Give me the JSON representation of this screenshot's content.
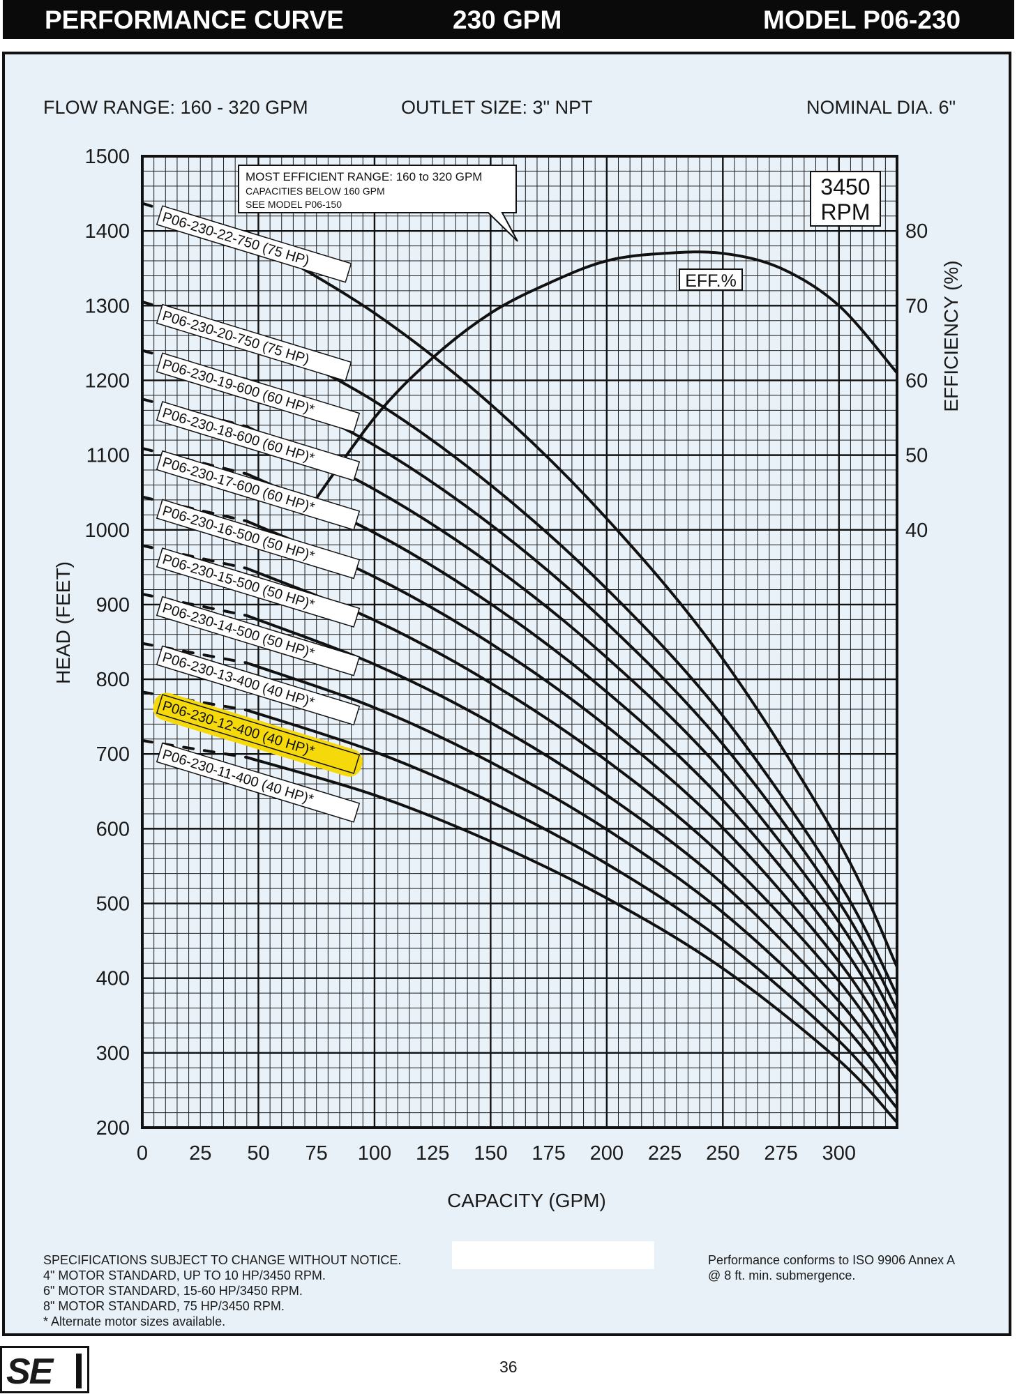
{
  "header": {
    "left": "PERFORMANCE CURVE",
    "center": "230 GPM",
    "right": "MODEL  P06-230"
  },
  "specs": {
    "flow_range": "FLOW RANGE: 160 - 320 GPM",
    "outlet": "OUTLET SIZE: 3\" NPT",
    "diameter": "NOMINAL DIA. 6\""
  },
  "chart_data": {
    "type": "line",
    "xlabel": "CAPACITY (GPM)",
    "ylabel": "HEAD (FEET)",
    "y2label": "EFFICIENCY (%)",
    "xlim": [
      0,
      325
    ],
    "ylim": [
      200,
      1500
    ],
    "y2lim": [
      0,
      100
    ],
    "x_ticks": [
      0,
      25,
      50,
      75,
      100,
      125,
      150,
      175,
      200,
      225,
      250,
      275,
      300
    ],
    "y_ticks": [
      200,
      300,
      400,
      500,
      600,
      700,
      800,
      900,
      1000,
      1100,
      1200,
      1300,
      1400,
      1500
    ],
    "y2_ticks": [
      40,
      50,
      60,
      70,
      80
    ],
    "grid": true,
    "speed_label": [
      "3450",
      "RPM"
    ],
    "callout": [
      "MOST EFFICIENT RANGE: 160 to 320 GPM",
      "CAPACITIES BELOW 160 GPM",
      "SEE  MODEL  P06-150"
    ],
    "highlight_series": "P06-230-12-400 (40 HP)*",
    "highlight_color": "#f5d90a",
    "series": [
      {
        "name": "P06-230-22-750 (75 HP)",
        "x": [
          0,
          50,
          100,
          150,
          200,
          250,
          300,
          325
        ],
        "y": [
          1437,
          1388,
          1290,
          1168,
          1015,
          827,
          582,
          415
        ]
      },
      {
        "name": "P06-230-20-750 (75 HP)",
        "x": [
          0,
          50,
          100,
          150,
          200,
          250,
          300,
          325
        ],
        "y": [
          1305,
          1260,
          1172,
          1060,
          921,
          751,
          528,
          377
        ]
      },
      {
        "name": "P06-230-19-600 (60 HP)*",
        "x": [
          0,
          50,
          100,
          150,
          200,
          250,
          300,
          325
        ],
        "y": [
          1240,
          1197,
          1113,
          1007,
          875,
          713,
          502,
          358
        ]
      },
      {
        "name": "P06-230-18-600 (60 HP)*",
        "x": [
          0,
          50,
          100,
          150,
          200,
          250,
          300,
          325
        ],
        "y": [
          1175,
          1134,
          1054,
          954,
          829,
          676,
          475,
          339
        ]
      },
      {
        "name": "P06-230-17-600 (60 HP)*",
        "x": [
          0,
          50,
          100,
          150,
          200,
          250,
          300,
          325
        ],
        "y": [
          1109,
          1071,
          996,
          901,
          783,
          638,
          449,
          320
        ]
      },
      {
        "name": "P06-230-16-500 (50 HP)*",
        "x": [
          0,
          50,
          100,
          150,
          200,
          250,
          300,
          325
        ],
        "y": [
          1044,
          1008,
          937,
          848,
          737,
          601,
          422,
          301
        ]
      },
      {
        "name": "P06-230-15-500 (50 HP)*",
        "x": [
          0,
          50,
          100,
          150,
          200,
          250,
          300,
          325
        ],
        "y": [
          979,
          945,
          879,
          795,
          691,
          563,
          396,
          283
        ]
      },
      {
        "name": "P06-230-14-500 (50 HP)*",
        "x": [
          0,
          50,
          100,
          150,
          200,
          250,
          300,
          325
        ],
        "y": [
          914,
          882,
          820,
          742,
          645,
          526,
          369,
          264
        ]
      },
      {
        "name": "P06-230-13-400 (40 HP)*",
        "x": [
          0,
          50,
          100,
          150,
          200,
          250,
          300,
          325
        ],
        "y": [
          848,
          819,
          762,
          689,
          599,
          488,
          343,
          245
        ]
      },
      {
        "name": "P06-230-12-400 (40 HP)*",
        "x": [
          0,
          50,
          100,
          150,
          200,
          250,
          300,
          325
        ],
        "y": [
          783,
          756,
          703,
          636,
          553,
          450,
          316,
          226
        ]
      },
      {
        "name": "P06-230-11-400 (40 HP)*",
        "x": [
          0,
          50,
          100,
          150,
          200,
          250,
          300,
          325
        ],
        "y": [
          718,
          693,
          645,
          583,
          507,
          413,
          290,
          207
        ]
      }
    ],
    "efficiency": {
      "name": "EFF.%",
      "x": [
        70,
        100,
        125,
        150,
        175,
        200,
        225,
        250,
        275,
        300,
        325
      ],
      "y": [
        42,
        55,
        63,
        69,
        73,
        76,
        77,
        77,
        75,
        70,
        61
      ]
    }
  },
  "footer": {
    "notes_left": [
      "SPECIFICATIONS SUBJECT TO CHANGE WITHOUT NOTICE.",
      "4\" MOTOR STANDARD, UP TO 10 HP/3450 RPM.",
      "6\" MOTOR STANDARD, 15-60 HP/3450 RPM.",
      "8\" MOTOR STANDARD, 75 HP/3450 RPM.",
      "* Alternate motor sizes available."
    ],
    "notes_right": [
      "Performance conforms to ISO 9906 Annex A",
      "@ 8 ft. min. submergence."
    ],
    "page_number": "36",
    "logo_text": "SE"
  }
}
